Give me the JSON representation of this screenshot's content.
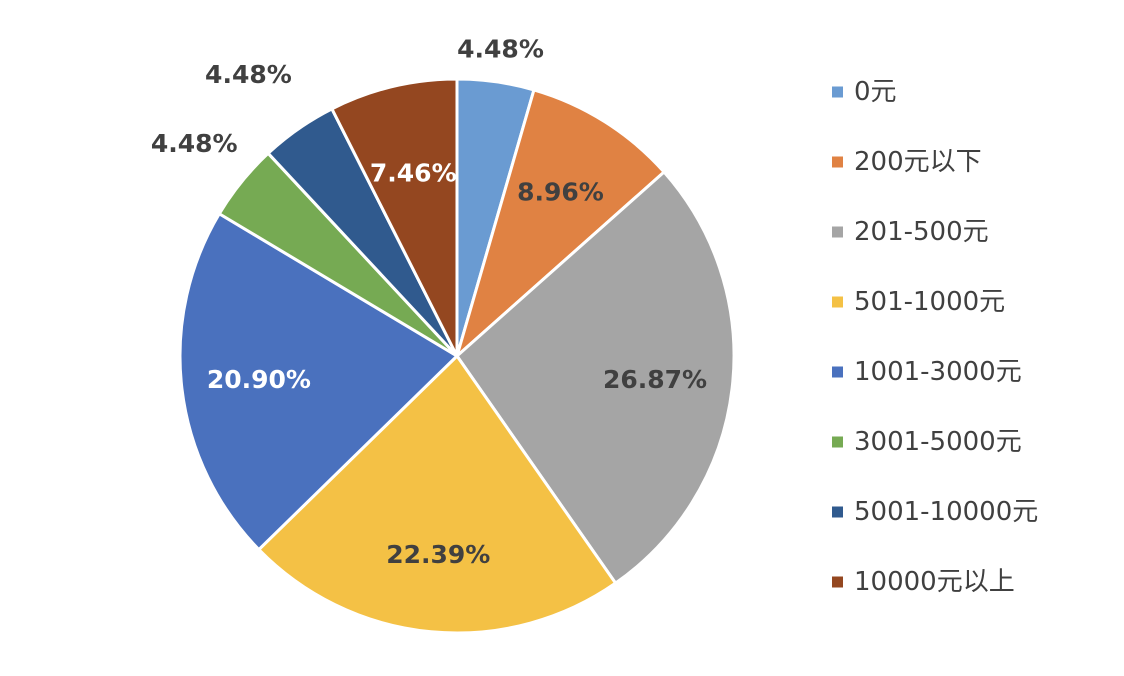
{
  "chart_data": {
    "type": "pie",
    "categories": [
      "0元",
      "200元以下",
      "201-500元",
      "501-1000元",
      "1001-3000元",
      "3001-5000元",
      "5001-10000元",
      "10000元以上"
    ],
    "values": [
      4.48,
      8.96,
      26.87,
      22.39,
      20.9,
      4.48,
      4.48,
      7.46
    ],
    "data_labels": [
      "4.48%",
      "8.96%",
      "26.87%",
      "22.39%",
      "20.90%",
      "4.48%",
      "4.48%",
      "7.46%"
    ],
    "colors": [
      "#6A9BD2",
      "#E08243",
      "#A5A5A5",
      "#F4C145",
      "#4A71BE",
      "#76AA53",
      "#305A8E",
      "#944720"
    ],
    "label_colors": [
      "#404040",
      "#404040",
      "#404040",
      "#404040",
      "#ffffff",
      "#404040",
      "#404040",
      "#ffffff"
    ],
    "start_angle": "12 o'clock",
    "direction": "clockwise",
    "legend_position": "right",
    "title": ""
  }
}
